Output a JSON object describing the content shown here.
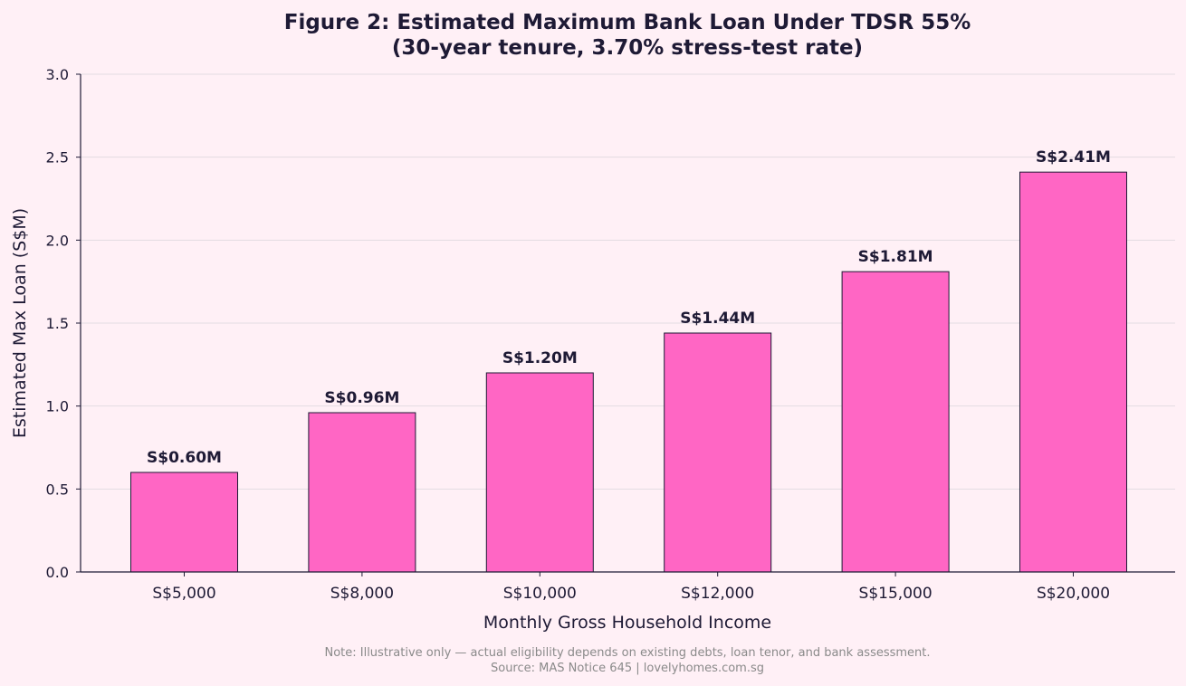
{
  "chart_data": {
    "type": "bar",
    "title": "Figure 2: Estimated Maximum Bank Loan Under TDSR 55%",
    "subtitle": "(30-year tenure, 3.70% stress-test rate)",
    "xlabel": "Monthly Gross Household Income",
    "ylabel": "Estimated Max Loan (S$M)",
    "categories": [
      "S$5,000",
      "S$8,000",
      "S$10,000",
      "S$12,000",
      "S$15,000",
      "S$20,000"
    ],
    "values": [
      0.6,
      0.96,
      1.2,
      1.44,
      1.81,
      2.41
    ],
    "data_labels": [
      "S$0.60M",
      "S$0.96M",
      "S$1.20M",
      "S$1.44M",
      "S$1.81M",
      "S$2.41M"
    ],
    "ylim": [
      0,
      3.0
    ],
    "yticks": [
      0.0,
      0.5,
      1.0,
      1.5,
      2.0,
      2.5,
      3.0
    ],
    "ytick_labels": [
      "0.0",
      "0.5",
      "1.0",
      "1.5",
      "2.0",
      "2.5",
      "3.0"
    ],
    "grid": "horizontal",
    "colors": {
      "bar": "#ff66c4",
      "bar_edge": "#1e1a35",
      "background": "#fff0f6",
      "grid": "#e3dbe2",
      "text": "#1e1a35",
      "note": "#8a8a8a"
    }
  },
  "footer": {
    "note": "Note: Illustrative only — actual eligibility depends on existing debts, loan tenor, and bank assessment.",
    "source": "Source: MAS Notice 645 | lovelyhomes.com.sg"
  }
}
